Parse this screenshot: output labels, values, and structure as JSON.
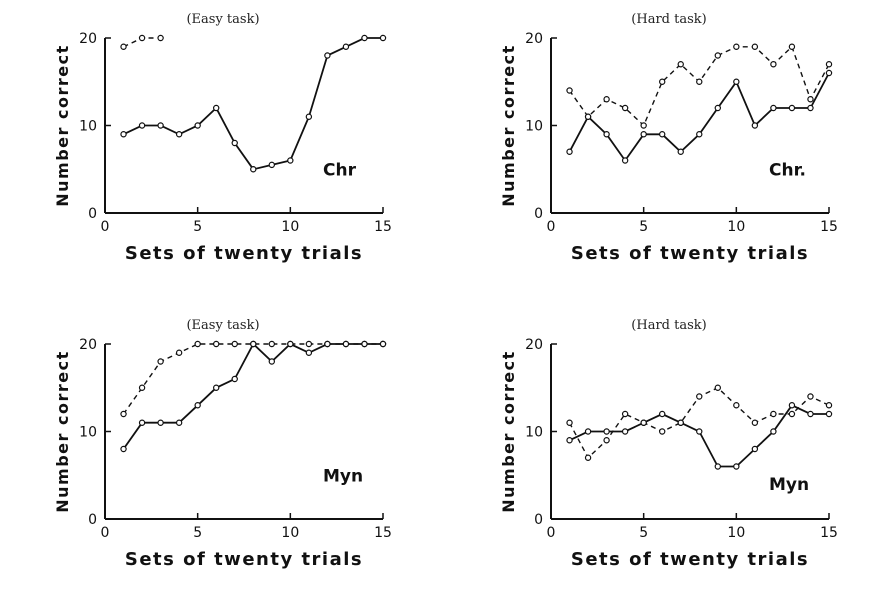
{
  "chart_data": [
    {
      "type": "line",
      "title": "(Easy task)",
      "xlabel": "Sets of twenty trials",
      "ylabel": "Number correct",
      "label": "Chr",
      "xlim": [
        0,
        15
      ],
      "ylim": [
        0,
        20
      ],
      "xticks": [
        0,
        5,
        10,
        15
      ],
      "yticks": [
        0,
        10,
        20
      ],
      "series": [
        {
          "style": "dashed",
          "x": [
            1,
            2,
            3
          ],
          "y": [
            19,
            20,
            20
          ]
        },
        {
          "style": "solid",
          "x": [
            1,
            2,
            3,
            4,
            5,
            6,
            7,
            8,
            9,
            10,
            11,
            12,
            13,
            14,
            15
          ],
          "y": [
            9,
            10,
            10,
            9,
            10,
            12,
            8,
            5,
            5.5,
            6,
            11,
            18,
            19,
            20,
            20
          ]
        }
      ]
    },
    {
      "type": "line",
      "title": "(Hard task)",
      "xlabel": "Sets of twenty trials",
      "ylabel": "Number correct",
      "label": "Chr.",
      "xlim": [
        0,
        15
      ],
      "ylim": [
        0,
        20
      ],
      "xticks": [
        0,
        5,
        10,
        15
      ],
      "yticks": [
        0,
        10,
        20
      ],
      "series": [
        {
          "style": "dashed",
          "x": [
            1,
            2,
            3,
            4,
            5,
            6,
            7,
            8,
            9,
            10,
            11,
            12,
            13,
            14,
            15
          ],
          "y": [
            14,
            11,
            13,
            12,
            10,
            15,
            17,
            15,
            18,
            19,
            19,
            17,
            19,
            13,
            17
          ]
        },
        {
          "style": "solid",
          "x": [
            1,
            2,
            3,
            4,
            5,
            6,
            7,
            8,
            9,
            10,
            11,
            12,
            13,
            14,
            15
          ],
          "y": [
            7,
            11,
            9,
            6,
            9,
            9,
            7,
            9,
            12,
            15,
            10,
            12,
            12,
            12,
            16
          ]
        }
      ]
    },
    {
      "type": "line",
      "title": "(Easy task)",
      "xlabel": "Sets of twenty trials",
      "ylabel": "Number correct",
      "label": "Myn",
      "xlim": [
        0,
        15
      ],
      "ylim": [
        0,
        20
      ],
      "xticks": [
        0,
        5,
        10,
        15
      ],
      "yticks": [
        0,
        10,
        20
      ],
      "series": [
        {
          "style": "dashed",
          "x": [
            1,
            2,
            3,
            4,
            5,
            6,
            7,
            8,
            9,
            10,
            11,
            12,
            13,
            14,
            15
          ],
          "y": [
            12,
            15,
            18,
            19,
            20,
            20,
            20,
            20,
            20,
            20,
            20,
            20,
            20,
            20,
            20
          ]
        },
        {
          "style": "solid",
          "x": [
            1,
            2,
            3,
            4,
            5,
            6,
            7,
            8,
            9,
            10,
            11,
            12,
            13,
            14,
            15
          ],
          "y": [
            8,
            11,
            11,
            11,
            13,
            15,
            16,
            20,
            18,
            20,
            19,
            20,
            20,
            20,
            20
          ]
        }
      ]
    },
    {
      "type": "line",
      "title": "(Hard task)",
      "xlabel": "Sets of twenty trials",
      "ylabel": "Number correct",
      "label": "Myn",
      "xlim": [
        0,
        15
      ],
      "ylim": [
        0,
        20
      ],
      "xticks": [
        0,
        5,
        10,
        15
      ],
      "yticks": [
        0,
        10,
        20
      ],
      "series": [
        {
          "style": "dashed",
          "x": [
            1,
            2,
            3,
            4,
            5,
            6,
            7,
            8,
            9,
            10,
            11,
            12,
            13,
            14,
            15
          ],
          "y": [
            11,
            7,
            9,
            12,
            11,
            10,
            11,
            14,
            15,
            13,
            11,
            12,
            12,
            14,
            13
          ]
        },
        {
          "style": "solid",
          "x": [
            1,
            2,
            3,
            4,
            5,
            6,
            7,
            8,
            9,
            10,
            11,
            12,
            13,
            14,
            15
          ],
          "y": [
            9,
            10,
            10,
            10,
            11,
            12,
            11,
            10,
            6,
            6,
            8,
            10,
            13,
            12,
            12
          ]
        }
      ]
    }
  ]
}
